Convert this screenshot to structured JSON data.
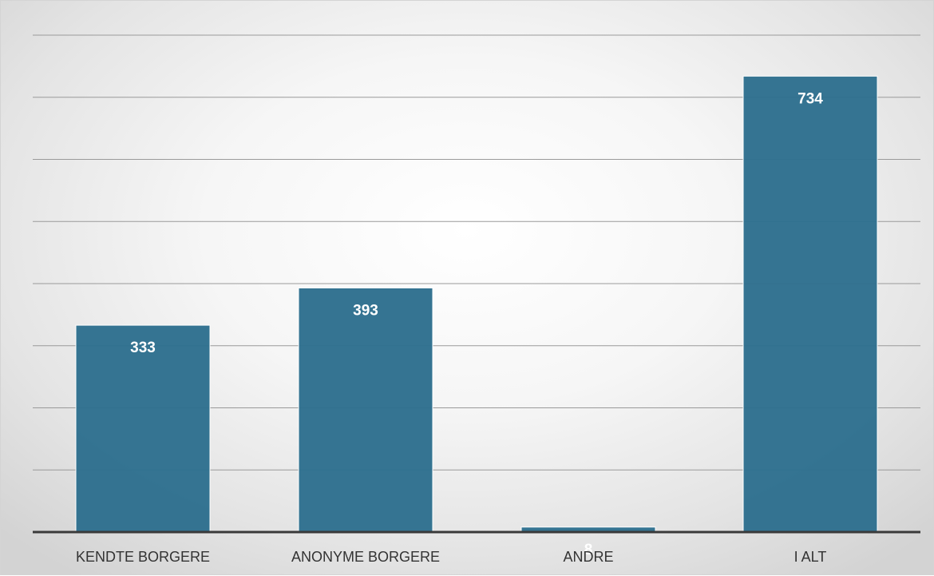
{
  "chart_data": {
    "type": "bar",
    "title": "",
    "xlabel": "",
    "ylabel": "",
    "categories": [
      "KENDTE BORGERE",
      "ANONYME BORGERE",
      "ANDRE",
      "I ALT"
    ],
    "values": [
      333,
      393,
      8,
      734
    ],
    "ylim": [
      0,
      800
    ],
    "y_gridline_step": 100,
    "y_tick_labels_visible": false,
    "grid": true,
    "legend": "none",
    "data_labels": true,
    "data_label_position": "inside-end",
    "colors": {
      "bar": "#2e6f8e",
      "bar_edge": "#ffffff",
      "grid": "#9a9a9a",
      "axis": "#3a3a3a",
      "data_label": "#ffffff",
      "category_label": "#333333"
    }
  }
}
